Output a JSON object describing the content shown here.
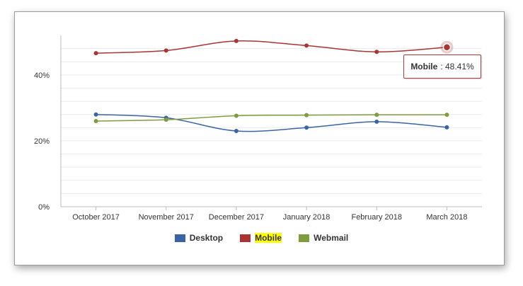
{
  "colors": {
    "desktop": "#3a65a3",
    "mobile": "#aa3434",
    "webmail": "#7f9c3f",
    "grid": "#ececec",
    "axis": "#bbbbbb"
  },
  "chart_data": {
    "type": "line",
    "categories": [
      "October 2017",
      "November 2017",
      "December 2017",
      "January 2018",
      "February 2018",
      "March 2018"
    ],
    "series": [
      {
        "name": "Desktop",
        "values": [
          28.0,
          27.0,
          23.0,
          24.0,
          25.8,
          24.1
        ]
      },
      {
        "name": "Mobile",
        "values": [
          46.6,
          47.4,
          50.3,
          48.9,
          47.0,
          48.41
        ]
      },
      {
        "name": "Webmail",
        "values": [
          26.0,
          26.4,
          27.6,
          27.8,
          27.9,
          27.9
        ]
      }
    ],
    "y_ticks": [
      "0%",
      "20%",
      "40%"
    ],
    "ylim": [
      0,
      52
    ],
    "grid": true,
    "legend_position": "bottom-center"
  },
  "legend": {
    "items": [
      {
        "label": "Desktop",
        "color": "#3a65a3"
      },
      {
        "label": "Mobile",
        "color": "#aa3434",
        "highlighted": true
      },
      {
        "label": "Webmail",
        "color": "#7f9c3f"
      }
    ]
  },
  "tooltip": {
    "series": "Mobile",
    "value_text": ": 48.41%"
  }
}
